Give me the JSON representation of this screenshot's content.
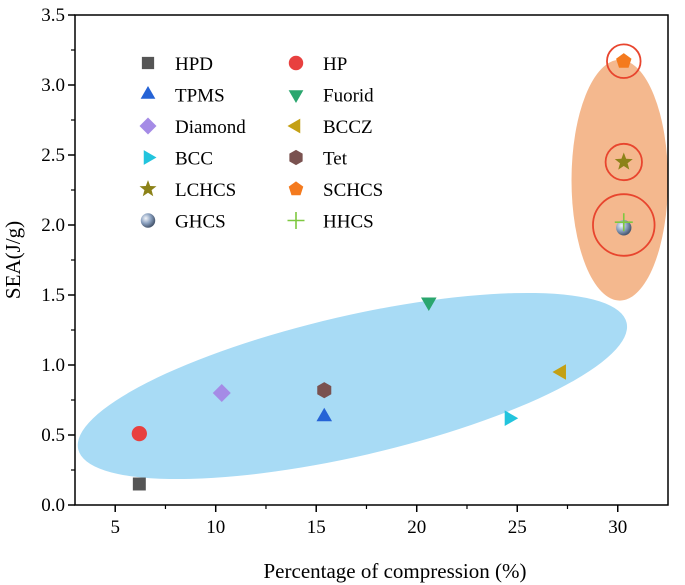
{
  "chart_data": {
    "type": "scatter",
    "xlabel": "Percentage of compression (%)",
    "ylabel": "SEA(J/g)",
    "xlim": [
      3,
      32.5
    ],
    "ylim": [
      0,
      3.5
    ],
    "xticks": [
      "5",
      "10",
      "15",
      "20",
      "25",
      "30"
    ],
    "yticks": [
      "0.0",
      "0.5",
      "1.0",
      "1.5",
      "2.0",
      "2.5",
      "3.0",
      "3.5"
    ],
    "legend_position": "top-left",
    "series": [
      {
        "name": "HPD",
        "marker": "square",
        "color": "#555555",
        "x": 6.2,
        "y": 0.15
      },
      {
        "name": "HP",
        "marker": "circle",
        "color": "#e8403f",
        "x": 6.2,
        "y": 0.51
      },
      {
        "name": "TPMS",
        "marker": "triangle-up",
        "color": "#2563d6",
        "x": 15.4,
        "y": 0.63
      },
      {
        "name": "Fuorid",
        "marker": "triangle-down",
        "color": "#2aa66e",
        "x": 20.6,
        "y": 1.45
      },
      {
        "name": "Diamond",
        "marker": "diamond",
        "color": "#a58be6",
        "x": 10.3,
        "y": 0.8
      },
      {
        "name": "BCCZ",
        "marker": "triangle-left",
        "color": "#c4a014",
        "x": 27.2,
        "y": 0.95
      },
      {
        "name": "BCC",
        "marker": "triangle-right",
        "color": "#22c4dd",
        "x": 24.6,
        "y": 0.62
      },
      {
        "name": "Tet",
        "marker": "hexagon",
        "color": "#7a5250",
        "x": 15.4,
        "y": 0.82
      },
      {
        "name": "LCHCS",
        "marker": "star",
        "color": "#8c8218",
        "x": 30.3,
        "y": 2.45
      },
      {
        "name": "SCHCS",
        "marker": "pentagon",
        "color": "#f47a1e",
        "x": 30.3,
        "y": 3.17
      },
      {
        "name": "GHCS",
        "marker": "sphere",
        "color": "#8aa0bf",
        "x": 30.3,
        "y": 1.98
      },
      {
        "name": "HHCS",
        "marker": "plus",
        "color": "#7ec840",
        "x": 30.3,
        "y": 2.02
      }
    ],
    "annotations": {
      "highlight_rings": [
        {
          "x": 30.3,
          "y": 3.17,
          "r": 0.12
        },
        {
          "x": 30.3,
          "y": 2.45,
          "r": 0.13
        },
        {
          "x": 30.3,
          "y": 2.0,
          "r": 0.22
        }
      ],
      "orange_region": {
        "cx": 30.1,
        "cy": 2.32,
        "rx": 2.4,
        "ry": 0.86,
        "color": "#f4b88e"
      },
      "blue_region": {
        "cx": 16.8,
        "cy": 0.85,
        "rx": 14.0,
        "ry": 0.5,
        "angle_deg": -13,
        "color": "#a8dbf5"
      }
    }
  }
}
